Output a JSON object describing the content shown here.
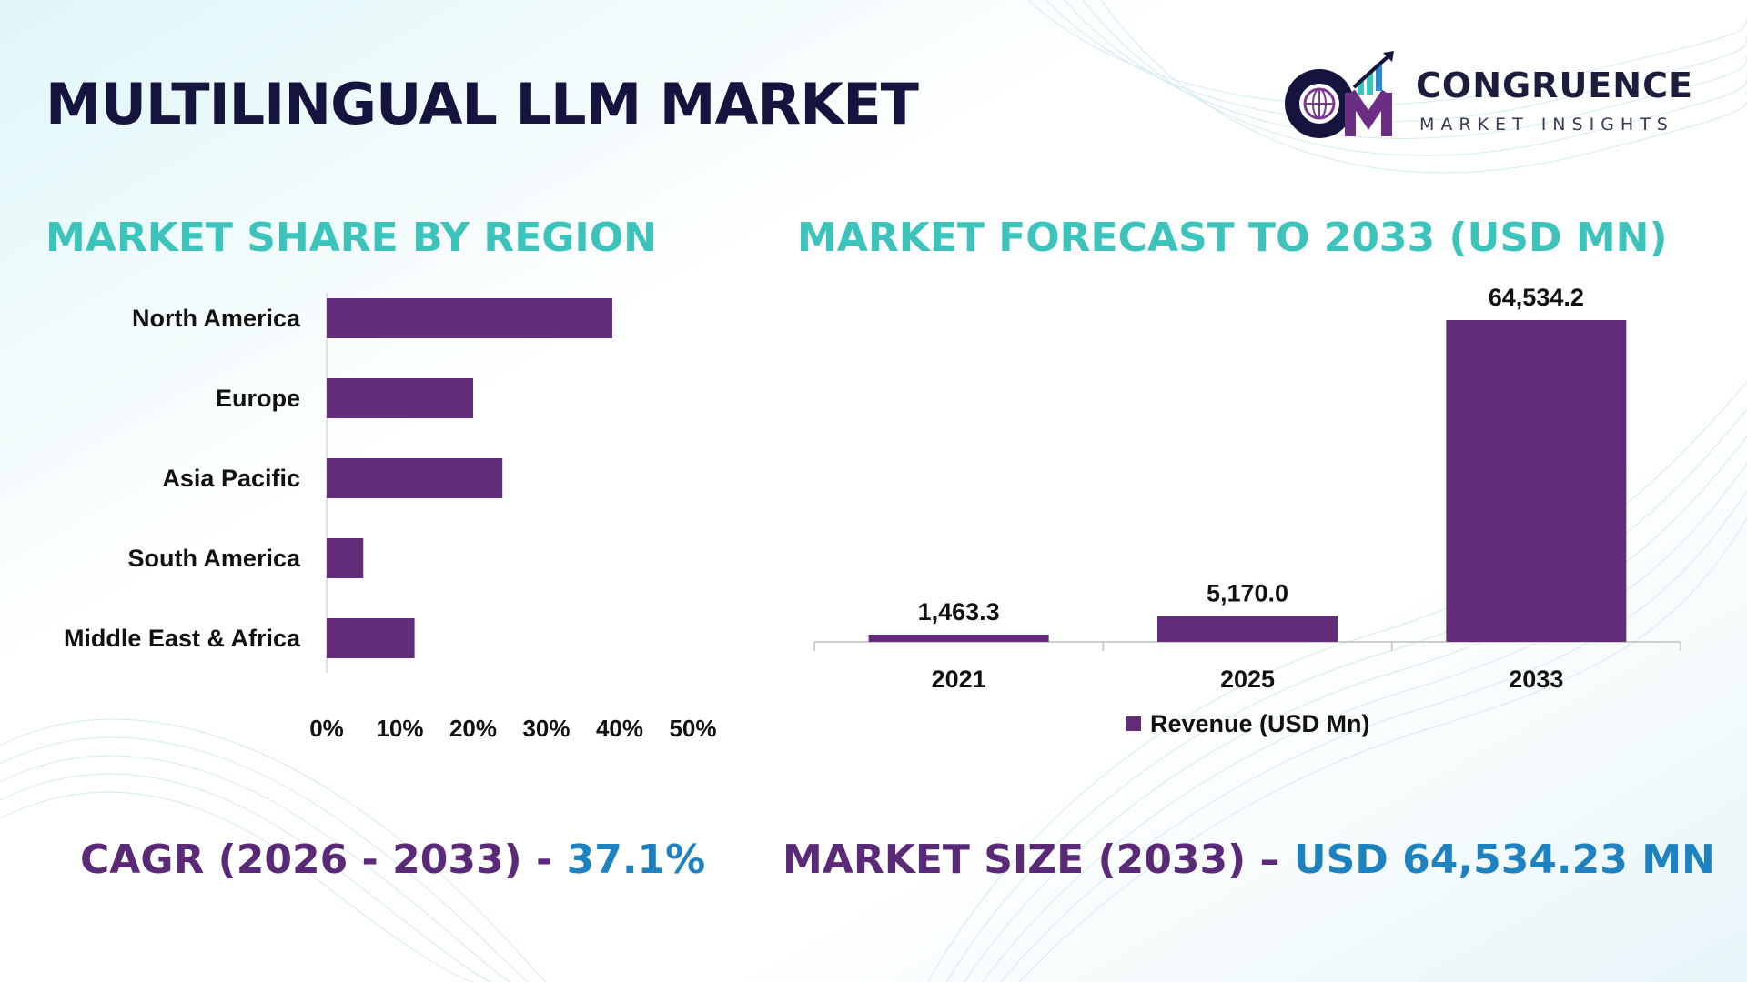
{
  "title": "MULTILINGUAL LLM MARKET",
  "logo": {
    "name": "CONGRUENCE",
    "tagline": "MARKET INSIGHTS"
  },
  "colors": {
    "title": "#14143f",
    "section_title": "#3cc3bb",
    "bar": "#632c78",
    "stat_label": "#5a2a78",
    "stat_value": "#1f82c0"
  },
  "chart_data": [
    {
      "type": "bar",
      "orientation": "horizontal",
      "title": "MARKET SHARE BY REGION",
      "categories": [
        "North America",
        "Europe",
        "Asia Pacific",
        "South America",
        "Middle East & Africa"
      ],
      "values": [
        39,
        20,
        24,
        5,
        12
      ],
      "xlim": [
        0,
        50
      ],
      "x_ticks": [
        "0%",
        "10%",
        "20%",
        "30%",
        "40%",
        "50%"
      ],
      "grid": false
    },
    {
      "type": "bar",
      "orientation": "vertical",
      "title": "MARKET FORECAST TO 2033 (USD MN)",
      "categories": [
        "2021",
        "2025",
        "2033"
      ],
      "series": [
        {
          "name": "Revenue (USD Mn)",
          "values": [
            1463.3,
            5170.0,
            64534.2
          ]
        }
      ],
      "data_labels": [
        "1,463.3",
        "5,170.0",
        "64,534.2"
      ],
      "legend": "bottom",
      "grid": false
    }
  ],
  "stats": {
    "cagr_label": "CAGR (2026 - 2033) -",
    "cagr_value": "37.1%",
    "size_label": "MARKET SIZE (2033) –",
    "size_value": "USD 64,534.23 MN"
  }
}
